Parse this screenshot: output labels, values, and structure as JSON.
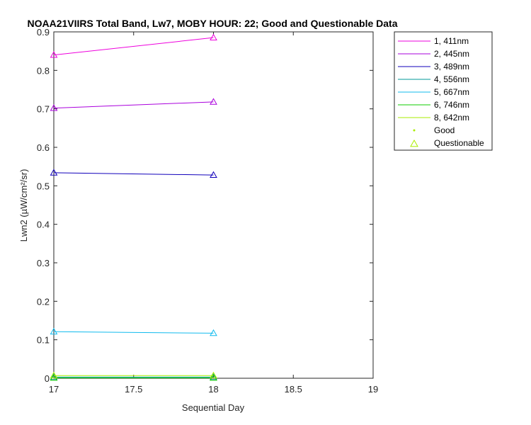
{
  "chart_data": {
    "type": "line",
    "title": "NOAA21VIIRS Total Band, Lw7, MOBY HOUR: 22;  Good and Questionable Data",
    "xlabel": "Sequential Day",
    "ylabel": "Lwn2 (µW/cm²/sr)",
    "xlim": [
      17,
      19
    ],
    "ylim": [
      0,
      0.9
    ],
    "xticks": [
      17,
      17.5,
      18,
      18.5,
      19
    ],
    "xtick_labels": [
      "17",
      "17.5",
      "18",
      "18.5",
      "19"
    ],
    "yticks": [
      0,
      0.1,
      0.2,
      0.3,
      0.4,
      0.5,
      0.6,
      0.7,
      0.8,
      0.9
    ],
    "ytick_labels": [
      "0",
      "0.1",
      "0.2",
      "0.3",
      "0.4",
      "0.5",
      "0.6",
      "0.7",
      "0.8",
      "0.9"
    ],
    "grid": false,
    "legend_position": "outside-top-right",
    "series": [
      {
        "name": "1, 411nm",
        "color": "#ee00dd",
        "x": [
          17,
          18
        ],
        "y": [
          0.84,
          0.885
        ],
        "quality": [
          "Questionable",
          "Questionable"
        ]
      },
      {
        "name": "2, 445nm",
        "color": "#aa00dd",
        "x": [
          17,
          18
        ],
        "y": [
          0.702,
          0.718
        ],
        "quality": [
          "Questionable",
          "Questionable"
        ]
      },
      {
        "name": "3, 489nm",
        "color": "#1100bb",
        "x": [
          17,
          18
        ],
        "y": [
          0.534,
          0.528
        ],
        "quality": [
          "Questionable",
          "Questionable"
        ]
      },
      {
        "name": "4, 556nm",
        "color": "#009999",
        "x": [
          17,
          18
        ],
        "y": [
          0.003,
          0.003
        ],
        "quality": [
          "Questionable",
          "Questionable"
        ]
      },
      {
        "name": "5, 667nm",
        "color": "#11bbee",
        "x": [
          17,
          18
        ],
        "y": [
          0.121,
          0.117
        ],
        "quality": [
          "Questionable",
          "Questionable"
        ]
      },
      {
        "name": "6, 746nm",
        "color": "#11cc00",
        "x": [
          17,
          18
        ],
        "y": [
          0.001,
          0.001
        ],
        "quality": [
          "Questionable",
          "Questionable"
        ]
      },
      {
        "name": "8, 642nm",
        "color": "#aaee00",
        "x": [
          17,
          18
        ],
        "y": [
          0.007,
          0.007
        ],
        "quality": [
          "Questionable",
          "Questionable"
        ]
      }
    ],
    "marker_legend": [
      {
        "name": "Good",
        "marker": "dot",
        "color": "#aaee00"
      },
      {
        "name": "Questionable",
        "marker": "triangle",
        "color": "#aaee00"
      }
    ]
  }
}
